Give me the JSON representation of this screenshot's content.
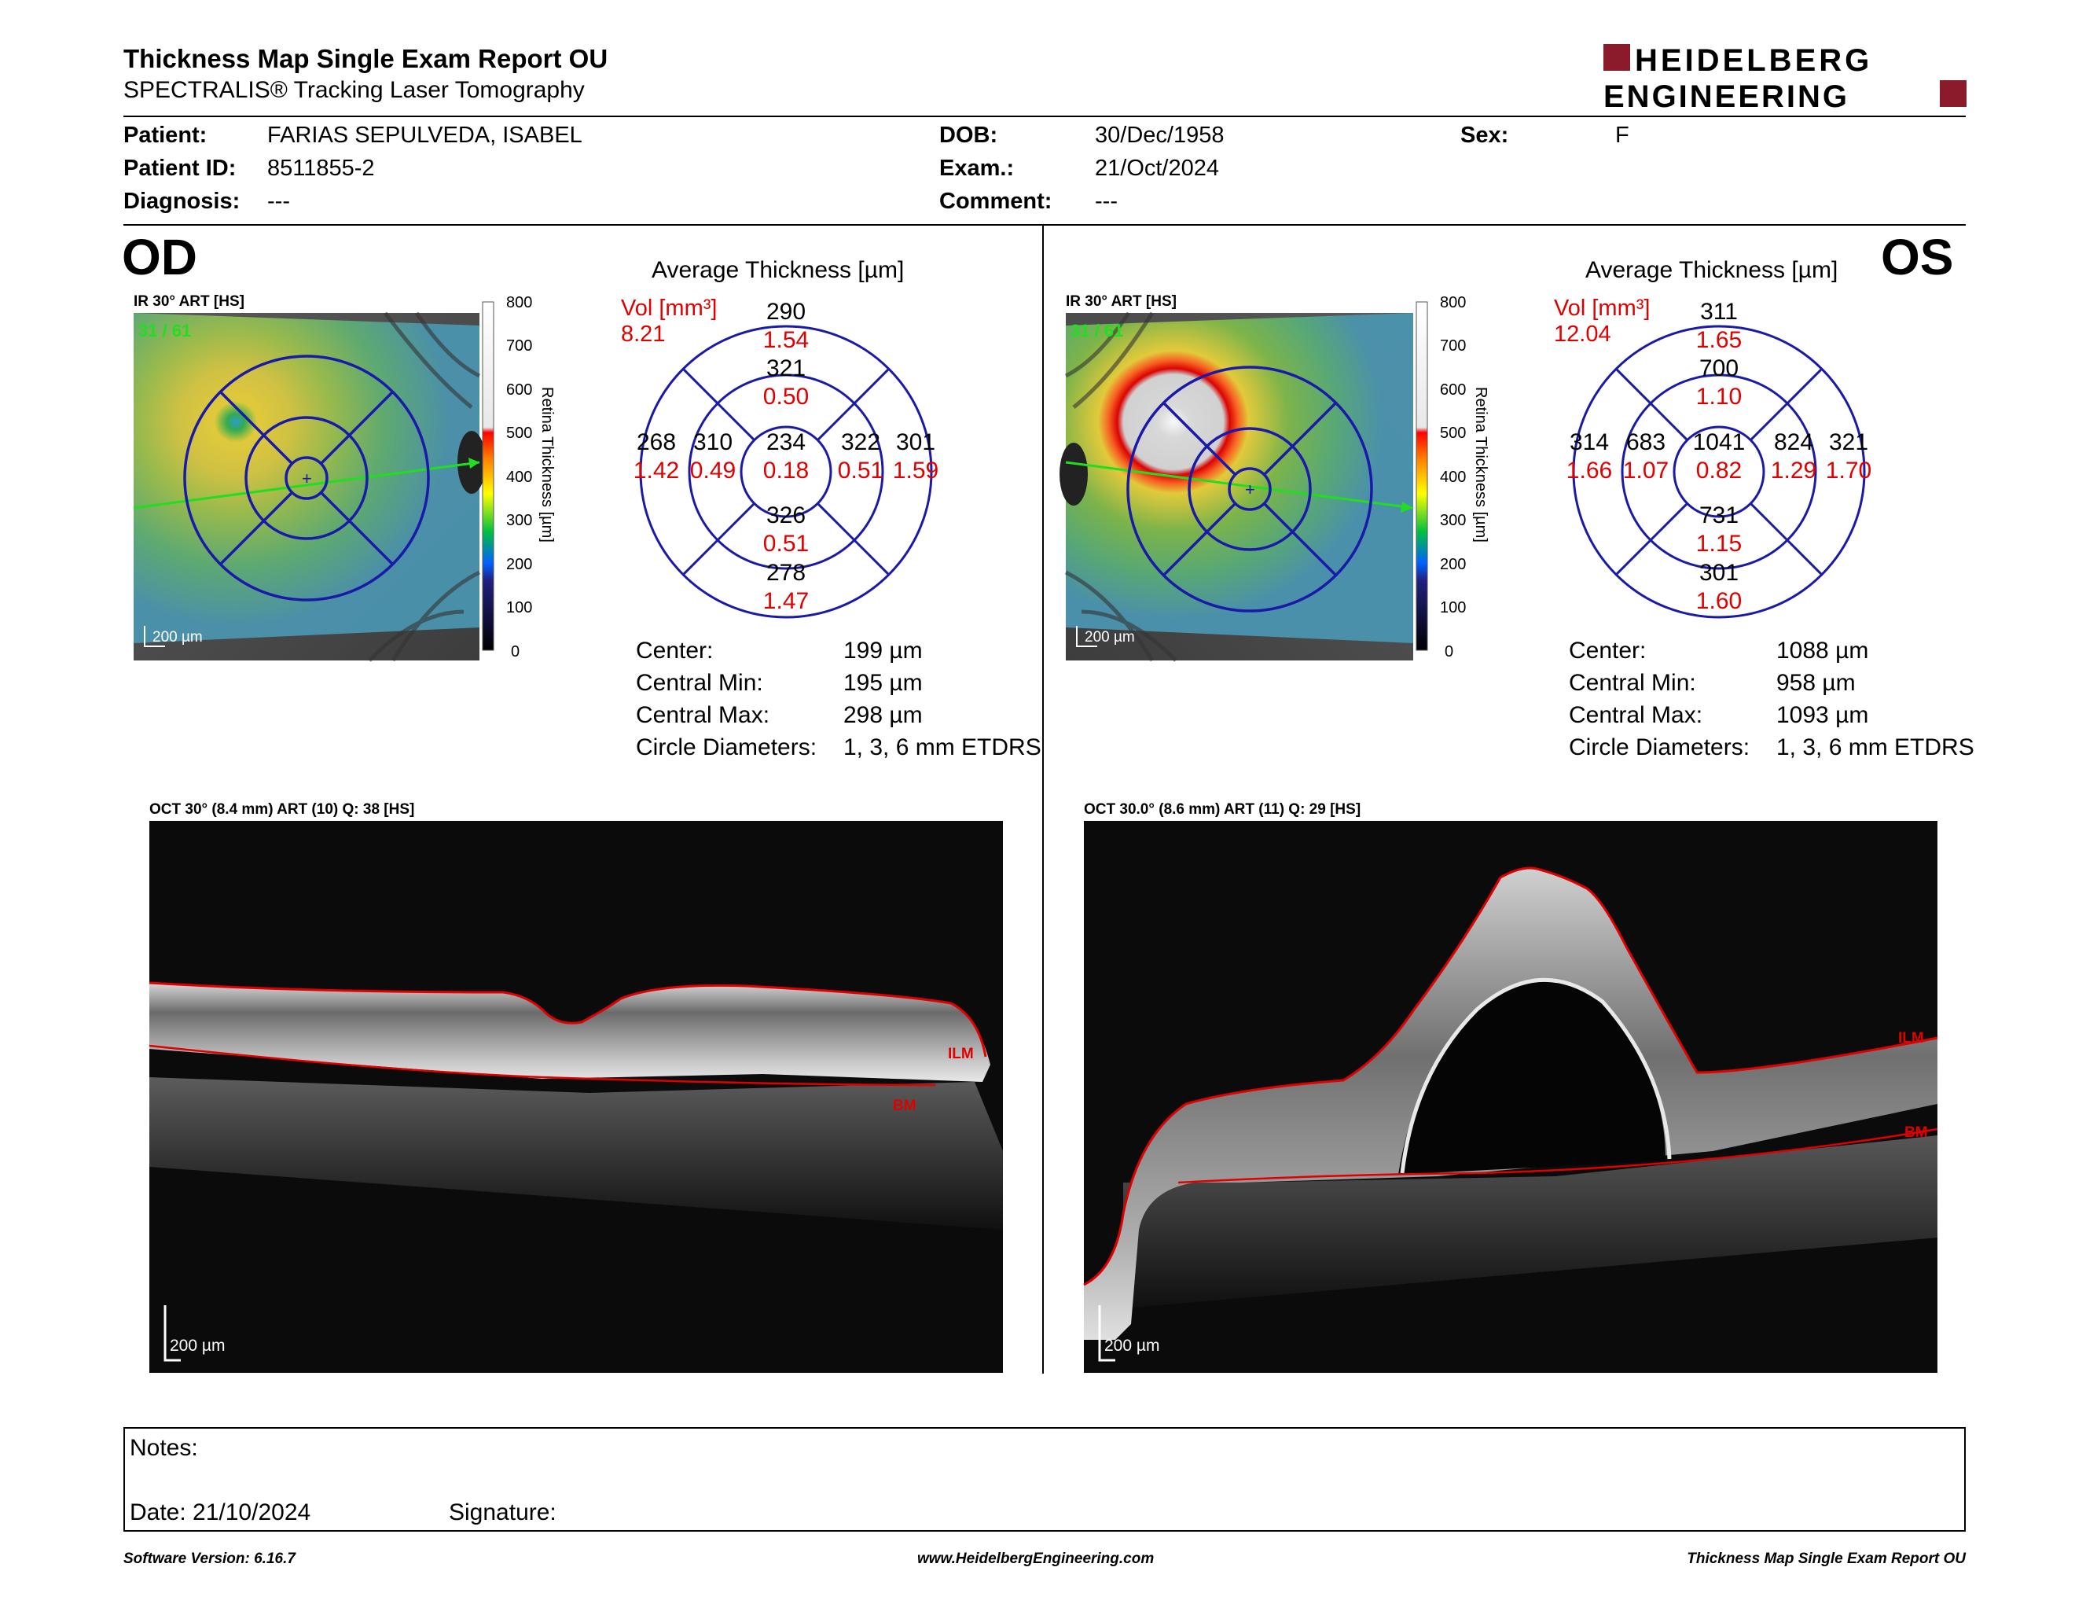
{
  "header": {
    "title": "Thickness Map Single Exam Report OU",
    "subtitle": "SPECTRALIS® Tracking Laser Tomography",
    "logo_line1": "HEIDELBERG",
    "logo_line2": "ENGINEERING"
  },
  "patient": {
    "patient_label": "Patient:",
    "patient_value": "FARIAS SEPULVEDA, ISABEL",
    "id_label": "Patient ID:",
    "id_value": "8511855-2",
    "diagnosis_label": "Diagnosis:",
    "diagnosis_value": "---",
    "dob_label": "DOB:",
    "dob_value": "30/Dec/1958",
    "exam_label": "Exam.:",
    "exam_value": "21/Oct/2024",
    "comment_label": "Comment:",
    "comment_value": "---",
    "sex_label": "Sex:",
    "sex_value": "F"
  },
  "od": {
    "eye": "OD",
    "ir_label": "IR 30° ART [HS]",
    "frames": "31 / 61",
    "scale_label": "200 µm",
    "colorbar_ticks": [
      "800",
      "700",
      "600",
      "500",
      "400",
      "300",
      "200",
      "100",
      "0"
    ],
    "colorbar_title": "Retina Thickness [µm]",
    "avg_title": "Average Thickness [µm]",
    "vol_label": "Vol [mm³]",
    "vol_total": "8.21",
    "sectors": {
      "center": {
        "t": "234",
        "v": "0.18"
      },
      "inner_sup": {
        "t": "321",
        "v": "0.50"
      },
      "inner_inf": {
        "t": "326",
        "v": "0.51"
      },
      "inner_left": {
        "t": "310",
        "v": "0.49"
      },
      "inner_right": {
        "t": "322",
        "v": "0.51"
      },
      "outer_sup": {
        "t": "290",
        "v": "1.54"
      },
      "outer_inf": {
        "t": "278",
        "v": "1.47"
      },
      "outer_left": {
        "t": "268",
        "v": "1.42"
      },
      "outer_right": {
        "t": "301",
        "v": "1.59"
      }
    },
    "stats": [
      {
        "label": "Center:",
        "value": "199 µm"
      },
      {
        "label": "Central Min:",
        "value": "195 µm"
      },
      {
        "label": "Central Max:",
        "value": "298 µm"
      },
      {
        "label": "Circle Diameters:",
        "value": "1, 3, 6 mm ETDRS"
      }
    ],
    "oct_label": "OCT 30° (8.4 mm) ART (10) Q: 38 [HS]",
    "oct_scale": "200 µm",
    "ilm": "ILM",
    "bm": "BM"
  },
  "os": {
    "eye": "OS",
    "ir_label": "IR 30° ART [HS]",
    "frames": "31 / 61",
    "scale_label": "200 µm",
    "colorbar_ticks": [
      "800",
      "700",
      "600",
      "500",
      "400",
      "300",
      "200",
      "100",
      "0"
    ],
    "colorbar_title": "Retina Thickness [µm]",
    "avg_title": "Average Thickness [µm]",
    "vol_label": "Vol [mm³]",
    "vol_total": "12.04",
    "sectors": {
      "center": {
        "t": "1041",
        "v": "0.82"
      },
      "inner_sup": {
        "t": "700",
        "v": "1.10"
      },
      "inner_inf": {
        "t": "731",
        "v": "1.15"
      },
      "inner_left": {
        "t": "683",
        "v": "1.07"
      },
      "inner_right": {
        "t": "824",
        "v": "1.29"
      },
      "outer_sup": {
        "t": "311",
        "v": "1.65"
      },
      "outer_inf": {
        "t": "301",
        "v": "1.60"
      },
      "outer_left": {
        "t": "314",
        "v": "1.66"
      },
      "outer_right": {
        "t": "321",
        "v": "1.70"
      }
    },
    "stats": [
      {
        "label": "Center:",
        "value": "1088 µm"
      },
      {
        "label": "Central Min:",
        "value": "958 µm"
      },
      {
        "label": "Central Max:",
        "value": "1093 µm"
      },
      {
        "label": "Circle Diameters:",
        "value": "1, 3, 6 mm ETDRS"
      }
    ],
    "oct_label": "OCT 30.0° (8.6 mm) ART (11) Q: 29 [HS]",
    "oct_scale": "200 µm",
    "ilm": "ILM",
    "bm": "BM"
  },
  "notes": {
    "notes_label": "Notes:",
    "date_label": "Date: 21/10/2024",
    "signature_label": "Signature:"
  },
  "footer": {
    "software": "Software Version: 6.16.7",
    "url": "www.HeidelbergEngineering.com",
    "report": "Thickness Map Single Exam Report OU"
  },
  "colors": {
    "etdrs_blue": "#1a1aa8",
    "value_red": "#e00000",
    "logo_red": "#8b1a2b",
    "scan_green": "#22dd22"
  }
}
